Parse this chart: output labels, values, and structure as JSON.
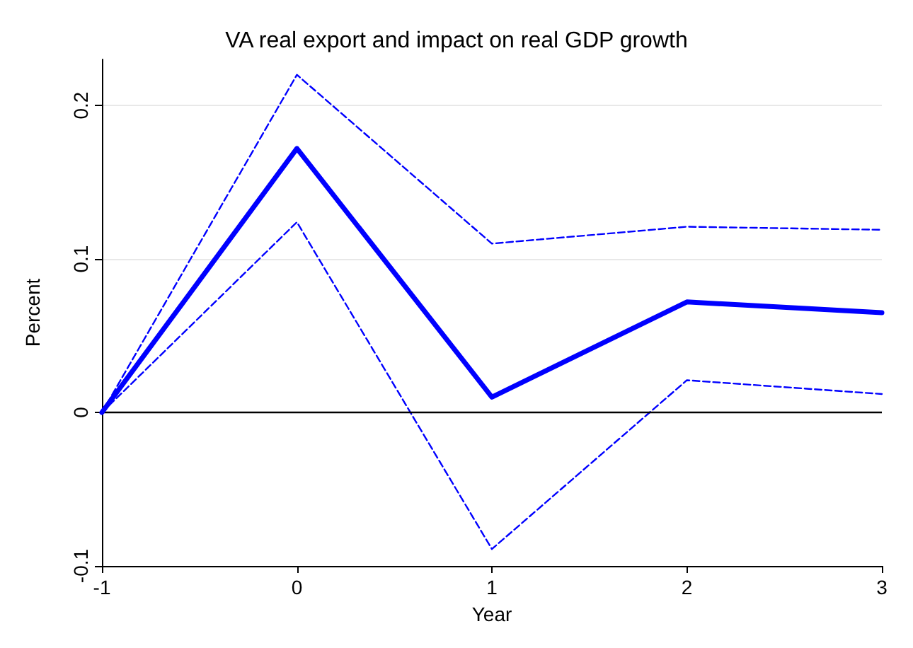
{
  "chart_data": {
    "type": "line",
    "title": "VA real export and impact on real GDP growth",
    "xlabel": "Year",
    "ylabel": "Percent",
    "x": [
      -1,
      0,
      1,
      2,
      3
    ],
    "series": [
      {
        "color": "#0000ff",
        "values": [
          0,
          0.172,
          0.01,
          0.072,
          0.065
        ],
        "line_style": "solid"
      },
      {
        "color": "#0000ff",
        "values": [
          0,
          0.22,
          0.11,
          0.121,
          0.119
        ],
        "line_style": "dashed"
      },
      {
        "color": "#0000ff",
        "values": [
          0,
          0.124,
          -0.089,
          0.021,
          0.012
        ],
        "line_style": "dashed"
      }
    ],
    "xlim": [
      -1,
      3
    ],
    "xticks": [
      -1,
      0,
      1,
      2,
      3
    ],
    "ylim": [
      -0.1,
      0.23
    ],
    "yticks": [
      -0.1,
      0,
      0.1,
      0.2
    ],
    "grid": "y",
    "marker": "none",
    "ref_lines": [
      {
        "axis": "y",
        "value": 0,
        "color": "#000000"
      }
    ]
  }
}
